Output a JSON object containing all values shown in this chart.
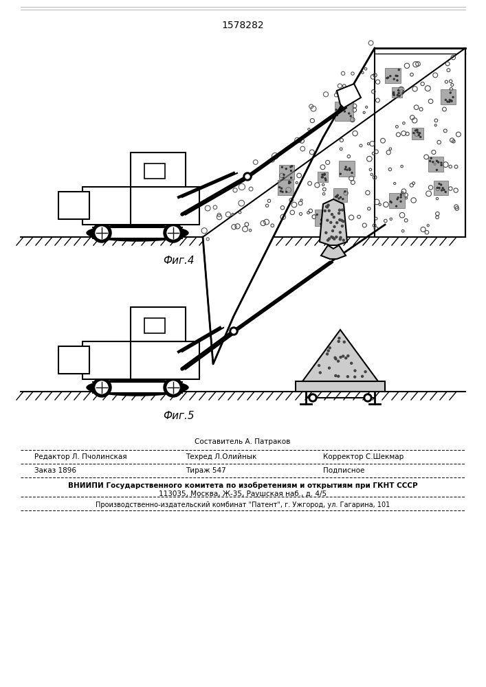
{
  "patent_number": "1578282",
  "fig4_caption": "Фиг.4",
  "fig5_caption": "Фиг.5",
  "footer_composit": "Составитель А. Патраков",
  "footer_editor": "Редактор Л. Пчолинская",
  "footer_techred": "Техред Л.Олийнык",
  "footer_corrector": "Корректор С.Шекмар",
  "footer_zakaz": "Заказ 1896",
  "footer_tirazh": "Тираж 547",
  "footer_podpisnoe": "Подписное",
  "footer_vniipi": "ВНИИПИ Государственного комитета по изобретениям и открытиям при ГКНТ СССР",
  "footer_addr": "113035, Москва, Ж-35, Раушская наб., д. 4/5",
  "footer_patent": "Производственно-издательский комбинат \"Патент\", г. Ужгород, ул. Гагарина, 101",
  "bg_color": "#ffffff",
  "fg_color": "#000000"
}
